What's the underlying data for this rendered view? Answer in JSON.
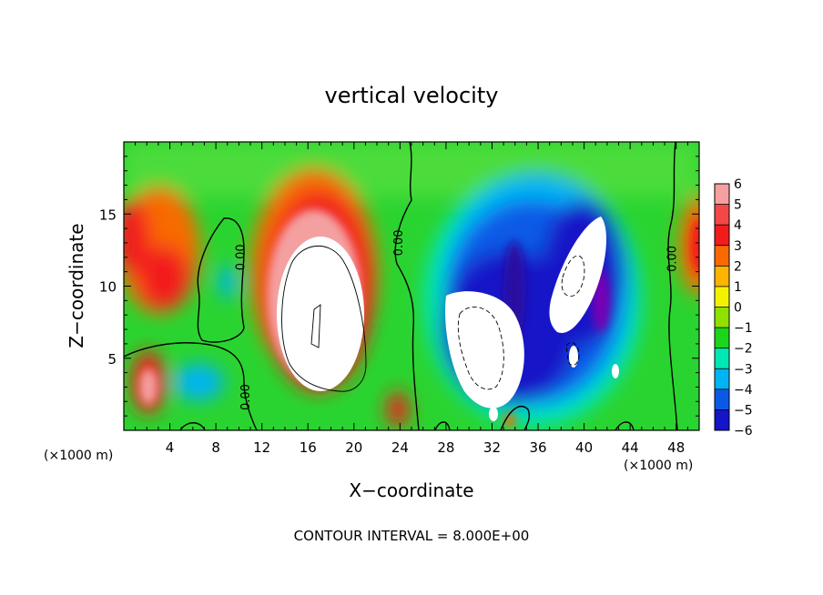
{
  "chart_data": {
    "type": "heatmap",
    "title": "vertical velocity",
    "xlabel": "X−coordinate",
    "ylabel": "Z−coordinate",
    "x_unit_left": "(×1000 m)",
    "x_unit_right": "(×1000 m)",
    "footer": "CONTOUR INTERVAL = 8.000E+00",
    "xlim": [
      0,
      50
    ],
    "ylim": [
      0,
      20
    ],
    "x_ticks": [
      4,
      8,
      12,
      16,
      20,
      24,
      28,
      32,
      36,
      40,
      44,
      48
    ],
    "y_ticks": [
      5,
      10,
      15
    ],
    "colorbar": {
      "levels": [
        6,
        5,
        4,
        3,
        2,
        1,
        0,
        -1,
        -2,
        -3,
        -4,
        -5,
        -6
      ],
      "labels": [
        "6",
        "5",
        "4",
        "3",
        "2",
        "1",
        "0",
        "−1",
        "−2",
        "−3",
        "−4",
        "−5",
        "−6"
      ],
      "colors": [
        "#f4a0a0",
        "#f24848",
        "#f21c1c",
        "#f86a00",
        "#fcb400",
        "#f2f200",
        "#90e000",
        "#1cd41c",
        "#00e6b4",
        "#00b4f4",
        "#0a5ae6",
        "#1414c8",
        "#2a0aa0",
        "#7800b4"
      ]
    },
    "contour_labels": [
      {
        "text": "0.00",
        "x": 10.5,
        "y": 12
      },
      {
        "text": "0.00",
        "x": 24.2,
        "y": 13
      },
      {
        "text": "0.00",
        "x": 10.9,
        "y": 2.3
      },
      {
        "text": "0.00",
        "x": 48.0,
        "y": 11.9
      }
    ]
  }
}
